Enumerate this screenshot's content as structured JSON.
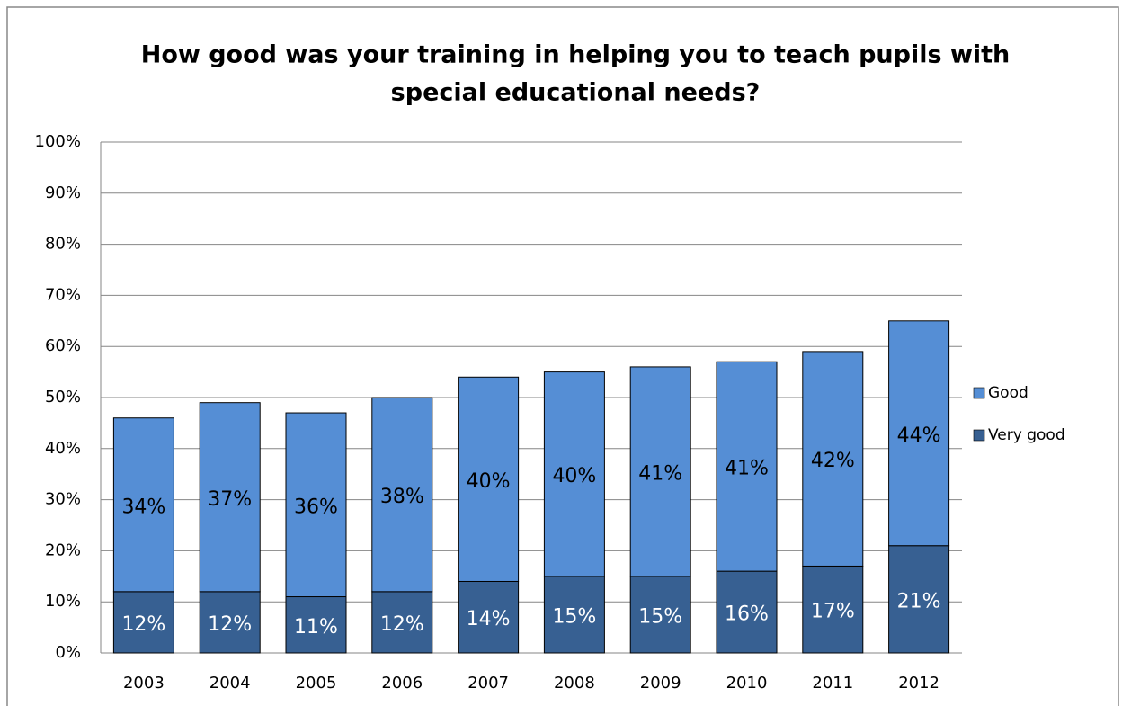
{
  "chart_data": {
    "type": "stacked_bar",
    "title": [
      "How good was your training in helping you to teach pupils with",
      "special educational needs?"
    ],
    "categories": [
      "2003",
      "2004",
      "2005",
      "2006",
      "2007",
      "2008",
      "2009",
      "2010",
      "2011",
      "2012"
    ],
    "series": [
      {
        "name": "Very good",
        "color": "#376092",
        "label_color": "#ffffff",
        "values": [
          12,
          12,
          11,
          12,
          14,
          15,
          15,
          16,
          17,
          21
        ],
        "value_labels": [
          "12%",
          "12%",
          "11%",
          "12%",
          "14%",
          "15%",
          "15%",
          "16%",
          "17%",
          "21%"
        ]
      },
      {
        "name": "Good",
        "color": "#558ed5",
        "label_color": "#000000",
        "values": [
          34,
          37,
          36,
          38,
          40,
          40,
          41,
          41,
          42,
          44
        ],
        "value_labels": [
          "34%",
          "37%",
          "36%",
          "38%",
          "40%",
          "40%",
          "41%",
          "41%",
          "42%",
          "44%"
        ]
      }
    ],
    "ylim": [
      0,
      100
    ],
    "yticks": [
      {
        "value": 0,
        "label": "0%"
      },
      {
        "value": 10,
        "label": "10%"
      },
      {
        "value": 20,
        "label": "20%"
      },
      {
        "value": 30,
        "label": "30%"
      },
      {
        "value": 40,
        "label": "40%"
      },
      {
        "value": 50,
        "label": "50%"
      },
      {
        "value": 60,
        "label": "60%"
      },
      {
        "value": 70,
        "label": "70%"
      },
      {
        "value": 80,
        "label": "80%"
      },
      {
        "value": 90,
        "label": "90%"
      },
      {
        "value": 100,
        "label": "100%"
      }
    ],
    "grid": true,
    "legend": "right"
  }
}
